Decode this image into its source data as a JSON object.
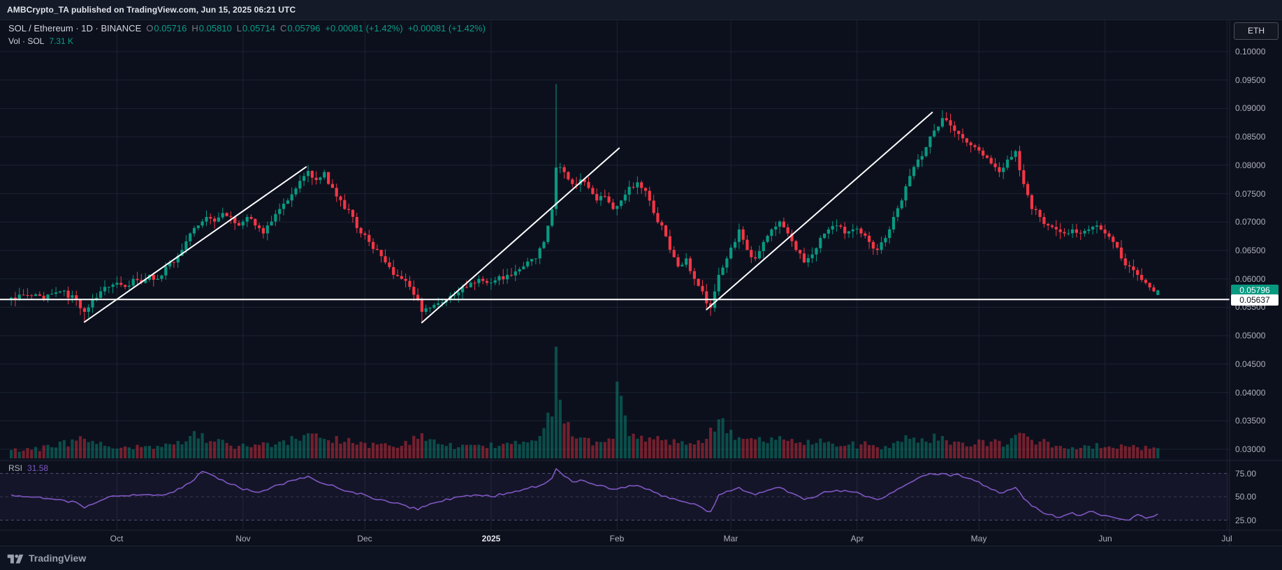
{
  "attribution": {
    "text": "AMBCrypto_TA published on TradingView.com, Jun 15, 2025 06:21 UTC"
  },
  "legend": {
    "title": "SOL / Ethereum · 1D · BINANCE",
    "ohlc": {
      "open_label": "O",
      "open": "0.05716",
      "high_label": "H",
      "high": "0.05810",
      "low_label": "L",
      "low": "0.05714",
      "close_label": "C",
      "close": "0.05796",
      "change1": "+0.00081 (+1.42%)",
      "change2": "+0.00081 (+1.42%)"
    },
    "volume_label": "Vol · SOL",
    "volume_value": "7.31 K"
  },
  "rsi_legend": {
    "label": "RSI",
    "value": "31.58"
  },
  "price_axis": {
    "unit_button": "ETH",
    "last_price_badge": "0.05796",
    "line_price_badge": "0.05637"
  },
  "footer": {
    "brand": "TradingView"
  },
  "colors": {
    "background": "#0c101d",
    "up": "#089981",
    "down": "#f23645",
    "up_vol": "rgba(8,153,129,0.45)",
    "down_vol": "rgba(242,54,69,0.45)",
    "rsi": "#7e57c2",
    "rsi_band_fill": "rgba(126,87,194,0.08)",
    "grid": "#1b2232",
    "separator": "#1f2533",
    "white_line": "#ffffff",
    "axis_text": "#aeb1ba"
  },
  "chart_data": {
    "type": "candlestick",
    "title": "SOL / Ethereum · 1D · BINANCE",
    "timeframe": "1D",
    "exchange": "BINANCE",
    "quote_unit": "ETH",
    "n_candles": 283,
    "y_axis_range": [
      0.03,
      0.1
    ],
    "last_candle_ohlc": {
      "o": 0.05716,
      "h": 0.0581,
      "l": 0.05714,
      "c": 0.05796
    },
    "horizontal_line_price": 0.05637,
    "volume_last_k": 7.31,
    "rsi_last": 31.58,
    "rsi_levels": [
      75,
      50,
      25
    ],
    "close_anchors": [
      [
        0,
        0.0567
      ],
      [
        4,
        0.0571
      ],
      [
        8,
        0.0564
      ],
      [
        12,
        0.0578
      ],
      [
        16,
        0.0564
      ],
      [
        18,
        0.0542
      ],
      [
        20,
        0.0564
      ],
      [
        22,
        0.0578
      ],
      [
        24,
        0.0586
      ],
      [
        26,
        0.0593
      ],
      [
        28,
        0.0586
      ],
      [
        30,
        0.06
      ],
      [
        32,
        0.0593
      ],
      [
        34,
        0.0607
      ],
      [
        36,
        0.06
      ],
      [
        38,
        0.0622
      ],
      [
        40,
        0.0629
      ],
      [
        42,
        0.0651
      ],
      [
        44,
        0.068
      ],
      [
        46,
        0.0694
      ],
      [
        48,
        0.0709
      ],
      [
        50,
        0.0701
      ],
      [
        52,
        0.0716
      ],
      [
        54,
        0.0709
      ],
      [
        56,
        0.0694
      ],
      [
        58,
        0.0709
      ],
      [
        60,
        0.0694
      ],
      [
        62,
        0.068
      ],
      [
        64,
        0.0701
      ],
      [
        66,
        0.0723
      ],
      [
        68,
        0.0738
      ],
      [
        70,
        0.0759
      ],
      [
        72,
        0.0781
      ],
      [
        73,
        0.079
      ],
      [
        75,
        0.0774
      ],
      [
        77,
        0.0788
      ],
      [
        78,
        0.0767
      ],
      [
        80,
        0.0745
      ],
      [
        82,
        0.0723
      ],
      [
        84,
        0.0709
      ],
      [
        86,
        0.068
      ],
      [
        88,
        0.0665
      ],
      [
        90,
        0.0651
      ],
      [
        92,
        0.0629
      ],
      [
        94,
        0.0607
      ],
      [
        96,
        0.06
      ],
      [
        98,
        0.0586
      ],
      [
        100,
        0.0564
      ],
      [
        101,
        0.0542
      ],
      [
        103,
        0.0549
      ],
      [
        105,
        0.0557
      ],
      [
        107,
        0.0564
      ],
      [
        109,
        0.0571
      ],
      [
        111,
        0.0586
      ],
      [
        113,
        0.0593
      ],
      [
        115,
        0.06
      ],
      [
        117,
        0.0593
      ],
      [
        122,
        0.0607
      ],
      [
        126,
        0.0622
      ],
      [
        129,
        0.0636
      ],
      [
        131,
        0.0665
      ],
      [
        133,
        0.0723
      ],
      [
        134,
        0.0796
      ],
      [
        136,
        0.0788
      ],
      [
        138,
        0.0767
      ],
      [
        140,
        0.0775
      ],
      [
        142,
        0.076
      ],
      [
        144,
        0.0738
      ],
      [
        146,
        0.0745
      ],
      [
        148,
        0.0723
      ],
      [
        150,
        0.0738
      ],
      [
        152,
        0.0762
      ],
      [
        154,
        0.077
      ],
      [
        156,
        0.0755
      ],
      [
        158,
        0.0716
      ],
      [
        160,
        0.0694
      ],
      [
        162,
        0.0651
      ],
      [
        164,
        0.0622
      ],
      [
        166,
        0.0636
      ],
      [
        168,
        0.06
      ],
      [
        170,
        0.0578
      ],
      [
        171,
        0.0557
      ],
      [
        172,
        0.0549
      ],
      [
        174,
        0.0607
      ],
      [
        176,
        0.0636
      ],
      [
        178,
        0.0665
      ],
      [
        179,
        0.0687
      ],
      [
        181,
        0.0651
      ],
      [
        183,
        0.0636
      ],
      [
        185,
        0.0665
      ],
      [
        187,
        0.0687
      ],
      [
        189,
        0.0701
      ],
      [
        191,
        0.068
      ],
      [
        193,
        0.0651
      ],
      [
        195,
        0.0629
      ],
      [
        197,
        0.0643
      ],
      [
        199,
        0.0672
      ],
      [
        201,
        0.0687
      ],
      [
        203,
        0.0694
      ],
      [
        205,
        0.068
      ],
      [
        207,
        0.0687
      ],
      [
        209,
        0.068
      ],
      [
        211,
        0.0665
      ],
      [
        213,
        0.0651
      ],
      [
        215,
        0.0672
      ],
      [
        217,
        0.0709
      ],
      [
        219,
        0.0738
      ],
      [
        221,
        0.0781
      ],
      [
        223,
        0.081
      ],
      [
        225,
        0.0832
      ],
      [
        227,
        0.0861
      ],
      [
        229,
        0.0883
      ],
      [
        231,
        0.087
      ],
      [
        233,
        0.0855
      ],
      [
        235,
        0.084
      ],
      [
        237,
        0.0832
      ],
      [
        239,
        0.0817
      ],
      [
        241,
        0.0803
      ],
      [
        243,
        0.0788
      ],
      [
        245,
        0.081
      ],
      [
        247,
        0.0825
      ],
      [
        249,
        0.0767
      ],
      [
        251,
        0.0723
      ],
      [
        253,
        0.0709
      ],
      [
        255,
        0.0694
      ],
      [
        257,
        0.0687
      ],
      [
        259,
        0.068
      ],
      [
        261,
        0.0687
      ],
      [
        263,
        0.068
      ],
      [
        265,
        0.0687
      ],
      [
        267,
        0.0694
      ],
      [
        269,
        0.068
      ],
      [
        271,
        0.0665
      ],
      [
        273,
        0.0636
      ],
      [
        275,
        0.0622
      ],
      [
        277,
        0.0607
      ],
      [
        279,
        0.0593
      ],
      [
        280,
        0.0585
      ],
      [
        281,
        0.0578
      ],
      [
        282,
        0.05796
      ]
    ],
    "wick_specials": [
      {
        "i": 18,
        "low": 0.0525
      },
      {
        "i": 101,
        "low": 0.0523
      },
      {
        "i": 134,
        "high": 0.0943
      },
      {
        "i": 172,
        "low": 0.0535
      },
      {
        "i": 229,
        "high": 0.0897
      }
    ],
    "volume_anchors_k": [
      [
        0,
        6
      ],
      [
        10,
        8
      ],
      [
        18,
        14
      ],
      [
        26,
        7
      ],
      [
        34,
        9
      ],
      [
        40,
        10
      ],
      [
        44,
        16
      ],
      [
        50,
        12
      ],
      [
        56,
        9
      ],
      [
        60,
        10
      ],
      [
        66,
        12
      ],
      [
        70,
        14
      ],
      [
        73,
        18
      ],
      [
        78,
        13
      ],
      [
        84,
        11
      ],
      [
        90,
        10
      ],
      [
        96,
        9
      ],
      [
        100,
        14
      ],
      [
        101,
        18
      ],
      [
        106,
        10
      ],
      [
        110,
        8
      ],
      [
        116,
        9
      ],
      [
        120,
        9
      ],
      [
        126,
        12
      ],
      [
        130,
        16
      ],
      [
        133,
        30
      ],
      [
        134,
        80
      ],
      [
        135,
        42
      ],
      [
        136,
        25
      ],
      [
        140,
        15
      ],
      [
        144,
        12
      ],
      [
        148,
        14
      ],
      [
        149,
        55
      ],
      [
        152,
        16
      ],
      [
        156,
        12
      ],
      [
        160,
        13
      ],
      [
        164,
        11
      ],
      [
        168,
        10
      ],
      [
        171,
        14
      ],
      [
        172,
        22
      ],
      [
        174,
        28
      ],
      [
        176,
        18
      ],
      [
        180,
        14
      ],
      [
        185,
        12
      ],
      [
        189,
        16
      ],
      [
        193,
        11
      ],
      [
        197,
        10
      ],
      [
        201,
        12
      ],
      [
        205,
        9
      ],
      [
        209,
        10
      ],
      [
        213,
        8
      ],
      [
        217,
        11
      ],
      [
        221,
        14
      ],
      [
        225,
        12
      ],
      [
        229,
        16
      ],
      [
        233,
        12
      ],
      [
        237,
        10
      ],
      [
        241,
        12
      ],
      [
        245,
        10
      ],
      [
        249,
        18
      ],
      [
        253,
        12
      ],
      [
        257,
        9
      ],
      [
        261,
        8
      ],
      [
        265,
        9
      ],
      [
        269,
        8
      ],
      [
        273,
        10
      ],
      [
        277,
        8
      ],
      [
        282,
        7.31
      ]
    ],
    "rsi_anchors": [
      [
        0,
        52
      ],
      [
        4,
        50
      ],
      [
        8,
        48
      ],
      [
        12,
        47
      ],
      [
        16,
        44
      ],
      [
        18,
        38
      ],
      [
        22,
        46
      ],
      [
        24,
        50
      ],
      [
        28,
        51
      ],
      [
        32,
        52
      ],
      [
        36,
        52
      ],
      [
        40,
        55
      ],
      [
        44,
        65
      ],
      [
        47,
        77
      ],
      [
        50,
        72
      ],
      [
        52,
        68
      ],
      [
        56,
        60
      ],
      [
        60,
        55
      ],
      [
        64,
        60
      ],
      [
        66,
        63
      ],
      [
        70,
        68
      ],
      [
        73,
        72
      ],
      [
        76,
        65
      ],
      [
        80,
        60
      ],
      [
        84,
        55
      ],
      [
        88,
        50
      ],
      [
        92,
        46
      ],
      [
        96,
        42
      ],
      [
        100,
        36
      ],
      [
        102,
        40
      ],
      [
        106,
        45
      ],
      [
        110,
        50
      ],
      [
        114,
        52
      ],
      [
        118,
        50
      ],
      [
        122,
        54
      ],
      [
        126,
        58
      ],
      [
        130,
        62
      ],
      [
        133,
        70
      ],
      [
        134,
        80
      ],
      [
        136,
        72
      ],
      [
        138,
        66
      ],
      [
        140,
        68
      ],
      [
        144,
        62
      ],
      [
        148,
        58
      ],
      [
        150,
        60
      ],
      [
        154,
        62
      ],
      [
        158,
        55
      ],
      [
        162,
        48
      ],
      [
        166,
        44
      ],
      [
        170,
        38
      ],
      [
        172,
        34
      ],
      [
        174,
        52
      ],
      [
        176,
        56
      ],
      [
        179,
        60
      ],
      [
        183,
        52
      ],
      [
        187,
        58
      ],
      [
        189,
        60
      ],
      [
        193,
        52
      ],
      [
        195,
        47
      ],
      [
        199,
        53
      ],
      [
        203,
        57
      ],
      [
        207,
        55
      ],
      [
        211,
        50
      ],
      [
        213,
        47
      ],
      [
        217,
        55
      ],
      [
        221,
        65
      ],
      [
        223,
        70
      ],
      [
        225,
        73
      ],
      [
        227,
        74
      ],
      [
        229,
        75
      ],
      [
        231,
        72
      ],
      [
        233,
        74
      ],
      [
        235,
        70
      ],
      [
        237,
        67
      ],
      [
        239,
        62
      ],
      [
        241,
        58
      ],
      [
        243,
        54
      ],
      [
        245,
        57
      ],
      [
        247,
        60
      ],
      [
        249,
        48
      ],
      [
        251,
        40
      ],
      [
        253,
        35
      ],
      [
        255,
        31
      ],
      [
        257,
        28
      ],
      [
        259,
        30
      ],
      [
        261,
        33
      ],
      [
        263,
        30
      ],
      [
        265,
        34
      ],
      [
        267,
        32
      ],
      [
        269,
        30
      ],
      [
        271,
        28
      ],
      [
        273,
        26
      ],
      [
        275,
        25
      ],
      [
        277,
        31
      ],
      [
        279,
        27
      ],
      [
        281,
        29
      ],
      [
        282,
        31.58
      ]
    ],
    "trendlines": [
      {
        "from": [
          18,
          0.0524
        ],
        "to": [
          72.5,
          0.0797
        ]
      },
      {
        "from": [
          101,
          0.0523
        ],
        "to": [
          149.5,
          0.083
        ]
      },
      {
        "from": [
          171,
          0.0546
        ],
        "to": [
          226.5,
          0.0893
        ]
      }
    ],
    "price_ticks": [
      {
        "label": "0.10000",
        "v": 0.1
      },
      {
        "label": "0.09500",
        "v": 0.095
      },
      {
        "label": "0.09000",
        "v": 0.09
      },
      {
        "label": "0.08500",
        "v": 0.085
      },
      {
        "label": "0.08000",
        "v": 0.08
      },
      {
        "label": "0.07500",
        "v": 0.075
      },
      {
        "label": "0.07000",
        "v": 0.07
      },
      {
        "label": "0.06500",
        "v": 0.065
      },
      {
        "label": "0.06000",
        "v": 0.06
      },
      {
        "label": "0.05500",
        "v": 0.055
      },
      {
        "label": "0.05000",
        "v": 0.05
      },
      {
        "label": "0.04500",
        "v": 0.045
      },
      {
        "label": "0.04000",
        "v": 0.04
      },
      {
        "label": "0.03500",
        "v": 0.035
      },
      {
        "label": "0.03000",
        "v": 0.03
      }
    ],
    "time_labels": [
      {
        "label": "Oct",
        "i": 26
      },
      {
        "label": "Nov",
        "i": 57
      },
      {
        "label": "Dec",
        "i": 87
      },
      {
        "label": "2025",
        "i": 118,
        "year": true
      },
      {
        "label": "Feb",
        "i": 149
      },
      {
        "label": "Mar",
        "i": 177
      },
      {
        "label": "Apr",
        "i": 208
      },
      {
        "label": "May",
        "i": 238
      },
      {
        "label": "Jun",
        "i": 269
      },
      {
        "label": "Jul",
        "i": 299
      }
    ],
    "rsi_ticks": [
      {
        "label": "75.00",
        "v": 75
      },
      {
        "label": "50.00",
        "v": 50
      },
      {
        "label": "25.00",
        "v": 25
      }
    ]
  }
}
